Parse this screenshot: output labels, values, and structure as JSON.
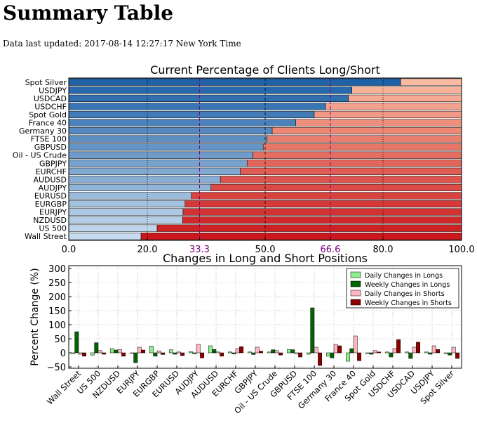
{
  "page": {
    "title": "Summary Table",
    "updated": "Data last updated: 2017-08-14 12:27:17 New York Time"
  },
  "chart_data": [
    {
      "type": "bar",
      "orientation": "horizontal",
      "stacked": true,
      "title": "Current Percentage of Clients Long/Short",
      "xlim": [
        0,
        100
      ],
      "xticks": [
        "0.0",
        "20.0",
        "33.3",
        "50.0",
        "66.6",
        "80.0",
        "100.0"
      ],
      "reference_lines": [
        33.3,
        50.0,
        66.6
      ],
      "grid": true,
      "categories": [
        "Spot Silver",
        "USDJPY",
        "USDCAD",
        "USDCHF",
        "Spot Gold",
        "France 40",
        "Germany 30",
        "FTSE 100",
        "GBPUSD",
        "Oil - US Crude",
        "GBPJPY",
        "EURCHF",
        "AUDUSD",
        "AUDJPY",
        "EURUSD",
        "EURGBP",
        "EURJPY",
        "NZDUSD",
        "US 500",
        "Wall Street"
      ],
      "series": [
        {
          "values": [
            84.5,
            72.1,
            71.2,
            65.4,
            62.5,
            57.8,
            51.8,
            50.5,
            49.5,
            46.9,
            45.4,
            43.7,
            38.6,
            36.2,
            31.2,
            29.6,
            29.1,
            29.0,
            22.5,
            18.4
          ]
        }
      ]
    },
    {
      "type": "bar",
      "title": "Changes in Long and Short Positions",
      "ylabel": "Percent Change (%)",
      "ylim": [
        -55,
        310
      ],
      "yticks": [
        "300",
        "250",
        "200",
        "150",
        "100",
        "50",
        "0",
        "−50"
      ],
      "grid": true,
      "legend_position": "top-right",
      "categories": [
        "Wall Street",
        "US 500",
        "NZDUSD",
        "EURJPY",
        "EURGBP",
        "EURUSD",
        "AUDJPY",
        "AUDUSD",
        "EURCHF",
        "GBPJPY",
        "Oil - US Crude",
        "GBPUSD",
        "FTSE 100",
        "Germany 30",
        "France 40",
        "Spot Gold",
        "USDCHF",
        "USDCAD",
        "USDJPY",
        "Spot Silver"
      ],
      "series": [
        {
          "name": "Daily Changes in Longs",
          "color": "#90ee90",
          "values": [
            -3,
            -8,
            15,
            0,
            24,
            11,
            4,
            25,
            3,
            3,
            3,
            12,
            -5,
            -12,
            -30,
            -3,
            3,
            3,
            3,
            -3
          ]
        },
        {
          "name": "Weekly Changes in Longs",
          "color": "#006400",
          "values": [
            75,
            36,
            10,
            -35,
            -12,
            -5,
            -3,
            12,
            -4,
            -6,
            11,
            11,
            160,
            -18,
            15,
            -5,
            -15,
            -20,
            -5,
            -8
          ]
        },
        {
          "name": "Daily Changes in Shorts",
          "color": "#ffb6c1",
          "values": [
            -5,
            8,
            12,
            20,
            7,
            3,
            30,
            3,
            15,
            20,
            8,
            -3,
            20,
            30,
            60,
            8,
            15,
            20,
            25,
            20
          ]
        },
        {
          "name": "Weekly Changes in Shorts",
          "color": "#8b0000",
          "values": [
            -12,
            -5,
            -12,
            10,
            -6,
            -10,
            -18,
            -12,
            22,
            6,
            -8,
            -15,
            -45,
            25,
            -28,
            3,
            47,
            38,
            12,
            -20
          ]
        }
      ]
    }
  ]
}
